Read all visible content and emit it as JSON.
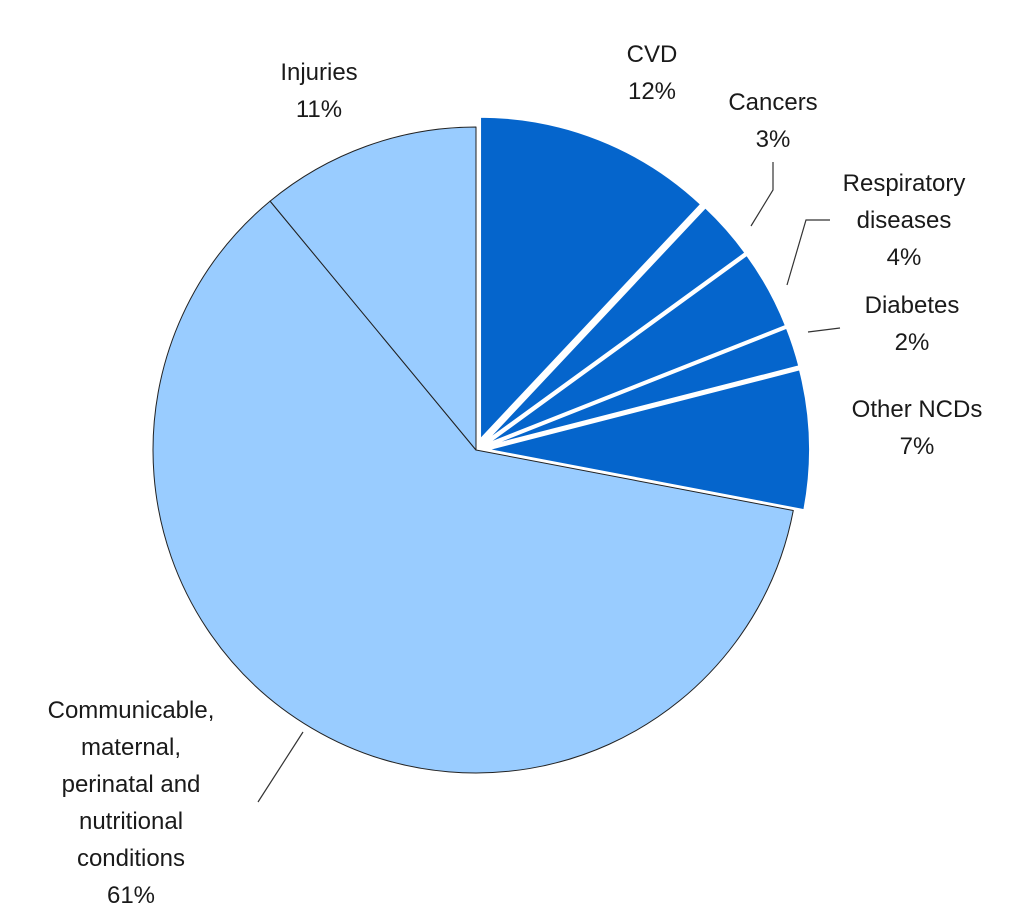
{
  "chart_data": {
    "type": "pie",
    "title": "",
    "slices": [
      {
        "label_lines": [
          "CVD"
        ],
        "value_label": "12%",
        "value": 12,
        "exploded": true,
        "color": "#0565cc"
      },
      {
        "label_lines": [
          "Cancers"
        ],
        "value_label": "3%",
        "value": 3,
        "exploded": true,
        "color": "#0565cc"
      },
      {
        "label_lines": [
          "Respiratory",
          "diseases"
        ],
        "value_label": "4%",
        "value": 4,
        "exploded": true,
        "color": "#0565cc"
      },
      {
        "label_lines": [
          "Diabetes"
        ],
        "value_label": "2%",
        "value": 2,
        "exploded": true,
        "color": "#0565cc"
      },
      {
        "label_lines": [
          "Other NCDs"
        ],
        "value_label": "7%",
        "value": 7,
        "exploded": true,
        "color": "#0565cc"
      },
      {
        "label_lines": [
          "Communicable,",
          "maternal,",
          "perinatal and",
          "nutritional",
          "conditions"
        ],
        "value_label": "61%",
        "value": 61,
        "exploded": false,
        "color": "#99ccff"
      },
      {
        "label_lines": [
          "Injuries"
        ],
        "value_label": "11%",
        "value": 11,
        "exploded": false,
        "color": "#99ccff"
      }
    ]
  }
}
